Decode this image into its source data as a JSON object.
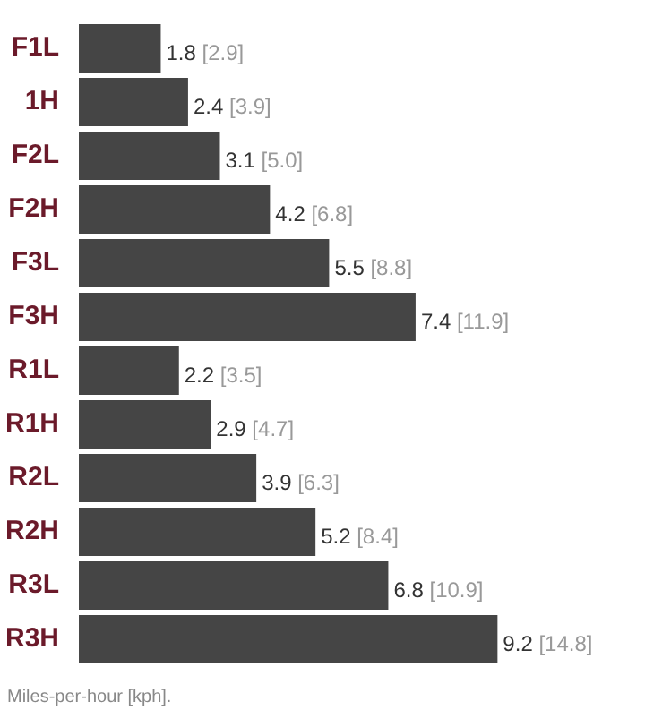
{
  "chart_data": {
    "type": "bar",
    "orientation": "horizontal",
    "categories": [
      "F1L",
      "1H",
      "F2L",
      "F2H",
      "F3L",
      "F3H",
      "R1L",
      "R1H",
      "R2L",
      "R2H",
      "R3L",
      "R3H"
    ],
    "values": [
      1.8,
      2.4,
      3.1,
      4.2,
      5.5,
      7.4,
      2.2,
      2.9,
      3.9,
      5.2,
      6.8,
      9.2
    ],
    "value_labels": [
      "1.8 [2.9]",
      "2.4 [3.9]",
      "3.1 [5.0]",
      "4.2 [6.8]",
      "5.5 [8.8]",
      "7.4 [11.9]",
      "2.2 [3.5]",
      "2.9 [4.7]",
      "3.9 [6.3]",
      "5.2 [8.4]",
      "6.8 [10.9]",
      "9.2 [14.8]"
    ],
    "color": "#454545",
    "legend": false,
    "annotations": [
      "Miles-per-hour [kph]."
    ]
  }
}
